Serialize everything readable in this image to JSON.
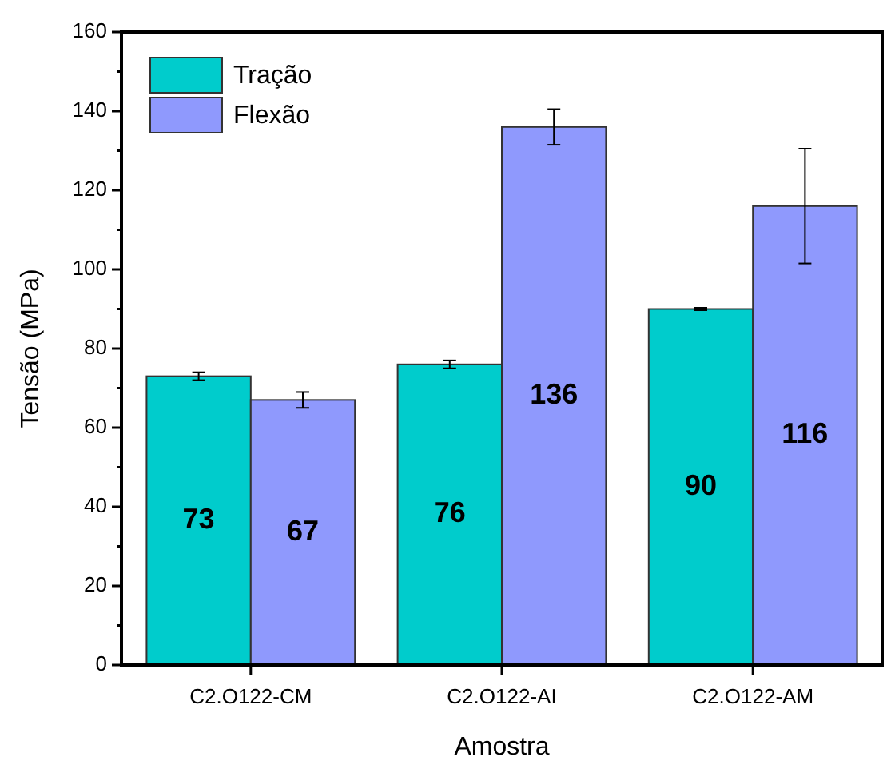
{
  "chart_data": {
    "type": "bar",
    "xlabel": "Amostra",
    "ylabel": "Tensão (MPa)",
    "categories": [
      "C2.O122-CM",
      "C2.O122-AI",
      "C2.O122-AM"
    ],
    "series": [
      {
        "name": "Tração",
        "color": "#00cccc",
        "values": [
          73,
          76,
          90
        ],
        "errors": [
          1,
          1,
          0.3
        ]
      },
      {
        "name": "Flexão",
        "color": "#8f99fd",
        "values": [
          67,
          136,
          116
        ],
        "errors": [
          2,
          4.5,
          14.5
        ]
      }
    ],
    "ylim": [
      0,
      160
    ],
    "yticks": [
      0,
      {
        "value": 10,
        "label": null
      },
      20,
      {
        "value": 30,
        "label": null
      },
      40,
      {
        "value": 50,
        "label": null
      },
      60,
      {
        "value": 70,
        "label": null
      },
      80,
      {
        "value": 90,
        "label": null
      },
      100,
      {
        "value": 110,
        "label": null
      },
      120,
      {
        "value": 130,
        "label": null
      },
      140,
      {
        "value": 150,
        "label": null
      },
      160
    ],
    "data_labels": true,
    "legend": "top left",
    "grid": false
  }
}
